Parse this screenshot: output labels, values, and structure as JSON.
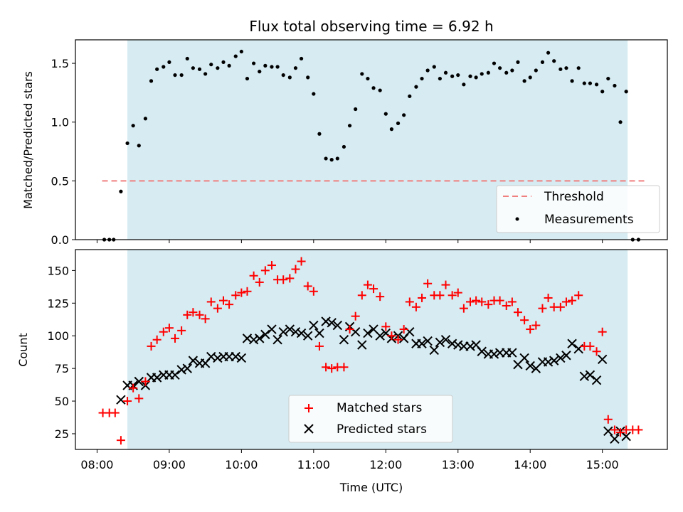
{
  "chart_data": [
    {
      "type": "scatter",
      "title": "Flux total observing time = 6.92 h",
      "ylabel": "Matched/Predicted stars",
      "xlabel": "",
      "xlim": [
        7.7,
        15.9
      ],
      "ylim": [
        0,
        1.7
      ],
      "yticks": [
        0.0,
        0.5,
        1.0,
        1.5
      ],
      "ytick_labels": [
        "0.0",
        "0.5",
        "1.0",
        "1.5"
      ],
      "shaded_span": [
        8.42,
        15.35
      ],
      "threshold": {
        "value": 0.5,
        "x": [
          8.07,
          15.6
        ],
        "label": "Threshold",
        "color": "#f08080"
      },
      "legend": {
        "position": "lower-right",
        "entries": [
          "Threshold",
          "Measurements"
        ]
      },
      "series": [
        {
          "name": "Measurements",
          "color": "#000000",
          "x": [
            8.1,
            8.17,
            8.23,
            8.33,
            8.42,
            8.5,
            8.58,
            8.67,
            8.75,
            8.83,
            8.92,
            9.0,
            9.08,
            9.17,
            9.25,
            9.33,
            9.42,
            9.5,
            9.58,
            9.67,
            9.75,
            9.83,
            9.92,
            10.0,
            10.08,
            10.17,
            10.25,
            10.33,
            10.42,
            10.5,
            10.58,
            10.67,
            10.75,
            10.83,
            10.92,
            11.0,
            11.08,
            11.17,
            11.25,
            11.33,
            11.42,
            11.5,
            11.58,
            11.67,
            11.75,
            11.83,
            11.92,
            12.0,
            12.08,
            12.17,
            12.25,
            12.33,
            12.42,
            12.5,
            12.58,
            12.67,
            12.75,
            12.83,
            12.92,
            13.0,
            13.08,
            13.17,
            13.25,
            13.33,
            13.42,
            13.5,
            13.58,
            13.67,
            13.75,
            13.83,
            13.92,
            14.0,
            14.08,
            14.17,
            14.25,
            14.33,
            14.42,
            14.5,
            14.58,
            14.67,
            14.75,
            14.83,
            14.92,
            15.0,
            15.08,
            15.17,
            15.25,
            15.33,
            15.42,
            15.5
          ],
          "y": [
            0.0,
            0.0,
            0.0,
            0.41,
            0.82,
            0.97,
            0.8,
            1.03,
            1.35,
            1.45,
            1.47,
            1.51,
            1.4,
            1.4,
            1.54,
            1.46,
            1.45,
            1.41,
            1.49,
            1.46,
            1.51,
            1.48,
            1.56,
            1.6,
            1.37,
            1.5,
            1.43,
            1.48,
            1.47,
            1.47,
            1.4,
            1.38,
            1.46,
            1.54,
            1.38,
            1.24,
            0.9,
            0.69,
            0.68,
            0.69,
            0.79,
            0.97,
            1.11,
            1.41,
            1.37,
            1.29,
            1.27,
            1.07,
            0.94,
            0.99,
            1.06,
            1.22,
            1.3,
            1.37,
            1.44,
            1.47,
            1.37,
            1.42,
            1.39,
            1.4,
            1.32,
            1.39,
            1.38,
            1.41,
            1.42,
            1.5,
            1.46,
            1.42,
            1.44,
            1.51,
            1.35,
            1.38,
            1.44,
            1.51,
            1.59,
            1.52,
            1.45,
            1.46,
            1.35,
            1.46,
            1.33,
            1.33,
            1.32,
            1.26,
            1.37,
            1.31,
            1.0,
            1.26,
            0.0,
            0.0
          ]
        }
      ]
    },
    {
      "type": "scatter",
      "title": "",
      "ylabel": "Count",
      "xlabel": "Time (UTC)",
      "xlim": [
        7.7,
        15.9
      ],
      "ylim": [
        13,
        166
      ],
      "yticks": [
        25,
        50,
        75,
        100,
        125,
        150
      ],
      "ytick_labels": [
        "25",
        "50",
        "75",
        "100",
        "125",
        "150"
      ],
      "xticks": [
        8,
        9,
        10,
        11,
        12,
        13,
        14,
        15
      ],
      "xtick_labels": [
        "08:00",
        "09:00",
        "10:00",
        "11:00",
        "12:00",
        "13:00",
        "14:00",
        "15:00"
      ],
      "shaded_span": [
        8.42,
        15.35
      ],
      "legend": {
        "position": "lower-center",
        "entries": [
          "Matched stars",
          "Predicted stars"
        ]
      },
      "series": [
        {
          "name": "Matched stars",
          "marker": "+",
          "color": "#ff0000",
          "x": [
            8.08,
            8.17,
            8.25,
            8.33,
            8.42,
            8.5,
            8.58,
            8.67,
            8.75,
            8.83,
            8.92,
            9.0,
            9.08,
            9.17,
            9.25,
            9.33,
            9.42,
            9.5,
            9.58,
            9.67,
            9.75,
            9.83,
            9.92,
            10.0,
            10.08,
            10.17,
            10.25,
            10.33,
            10.42,
            10.5,
            10.58,
            10.67,
            10.75,
            10.83,
            10.92,
            11.0,
            11.08,
            11.17,
            11.25,
            11.33,
            11.42,
            11.5,
            11.58,
            11.67,
            11.75,
            11.83,
            11.92,
            12.0,
            12.08,
            12.17,
            12.25,
            12.33,
            12.42,
            12.5,
            12.58,
            12.67,
            12.75,
            12.83,
            12.92,
            13.0,
            13.08,
            13.17,
            13.25,
            13.33,
            13.42,
            13.5,
            13.58,
            13.67,
            13.75,
            13.83,
            13.92,
            14.0,
            14.08,
            14.17,
            14.25,
            14.33,
            14.42,
            14.5,
            14.58,
            14.67,
            14.75,
            14.83,
            14.92,
            15.0,
            15.08,
            15.17,
            15.25,
            15.33,
            15.42,
            15.5
          ],
          "y": [
            41,
            41,
            41,
            20,
            50,
            60,
            52,
            65,
            92,
            97,
            103,
            106,
            98,
            104,
            116,
            118,
            116,
            113,
            126,
            121,
            127,
            124,
            131,
            133,
            134,
            146,
            141,
            150,
            154,
            143,
            143,
            144,
            151,
            157,
            138,
            134,
            92,
            76,
            75,
            76,
            76,
            105,
            115,
            131,
            139,
            136,
            130,
            107,
            100,
            97,
            105,
            126,
            122,
            129,
            140,
            131,
            131,
            139,
            131,
            133,
            121,
            126,
            127,
            126,
            124,
            127,
            127,
            123,
            126,
            118,
            112,
            105,
            108,
            121,
            129,
            122,
            122,
            126,
            127,
            131,
            92,
            92,
            88,
            103,
            36,
            28,
            26,
            28,
            28,
            28
          ]
        },
        {
          "name": "Predicted stars",
          "marker": "x",
          "color": "#000000",
          "x": [
            8.33,
            8.42,
            8.5,
            8.58,
            8.67,
            8.75,
            8.83,
            8.92,
            9.0,
            9.08,
            9.17,
            9.25,
            9.33,
            9.42,
            9.5,
            9.58,
            9.67,
            9.75,
            9.83,
            9.92,
            10.0,
            10.08,
            10.17,
            10.25,
            10.33,
            10.42,
            10.5,
            10.58,
            10.67,
            10.75,
            10.83,
            10.92,
            11.0,
            11.08,
            11.17,
            11.25,
            11.33,
            11.42,
            11.5,
            11.58,
            11.67,
            11.75,
            11.83,
            11.92,
            12.0,
            12.08,
            12.17,
            12.25,
            12.33,
            12.42,
            12.5,
            12.58,
            12.67,
            12.75,
            12.83,
            12.92,
            13.0,
            13.08,
            13.17,
            13.25,
            13.33,
            13.42,
            13.5,
            13.58,
            13.67,
            13.75,
            13.83,
            13.92,
            14.0,
            14.08,
            14.17,
            14.25,
            14.33,
            14.42,
            14.5,
            14.58,
            14.67,
            14.75,
            14.83,
            14.92,
            15.0,
            15.08,
            15.17,
            15.25,
            15.33
          ],
          "y": [
            51,
            62,
            62,
            65,
            62,
            68,
            68,
            70,
            70,
            70,
            74,
            75,
            81,
            79,
            79,
            84,
            83,
            84,
            84,
            84,
            83,
            98,
            97,
            98,
            101,
            105,
            97,
            103,
            105,
            103,
            102,
            100,
            108,
            102,
            111,
            110,
            108,
            97,
            107,
            103,
            93,
            102,
            105,
            100,
            102,
            98,
            100,
            98,
            103,
            94,
            94,
            96,
            89,
            95,
            97,
            94,
            93,
            92,
            92,
            93,
            88,
            86,
            86,
            87,
            87,
            87,
            78,
            83,
            77,
            75,
            80,
            80,
            81,
            83,
            85,
            94,
            90,
            69,
            70,
            66,
            82,
            27,
            21,
            27,
            23
          ]
        }
      ]
    }
  ]
}
